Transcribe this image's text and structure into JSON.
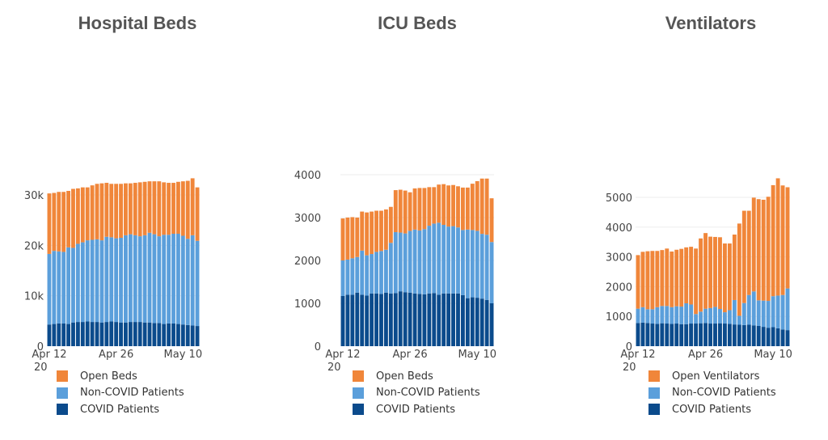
{
  "colors": {
    "open": "#F0863A",
    "noncovid": "#5B9FDB",
    "covid": "#0B4B8C"
  },
  "x_ticks": [
    "Apr 12",
    "Apr 26",
    "May 10"
  ],
  "x_year_partial": "20",
  "chart_data": [
    {
      "type": "bar",
      "stacked": true,
      "title": "Hospital Beds",
      "xlabel": "",
      "ylabel": "",
      "x_start": "2020-04-12",
      "ylim": [
        0,
        35000
      ],
      "yticks": [
        0,
        10000,
        20000,
        30000
      ],
      "ytick_labels": [
        "0",
        "10k",
        "20k",
        "30k"
      ],
      "legend": [
        "Open Beds",
        "Non-COVID Patients",
        "COVID Patients"
      ],
      "series": [
        {
          "name": "COVID Patients",
          "color": "#0B4B8C",
          "values": [
            4300,
            4400,
            4500,
            4500,
            4400,
            4700,
            4800,
            4800,
            4900,
            4800,
            4800,
            4700,
            4800,
            4900,
            4800,
            4700,
            4700,
            4800,
            4800,
            4800,
            4700,
            4700,
            4600,
            4600,
            4400,
            4500,
            4500,
            4400,
            4300,
            4200,
            4100,
            4000
          ]
        },
        {
          "name": "Non-COVID Patients",
          "color": "#5B9FDB",
          "values": [
            14000,
            14500,
            14300,
            14200,
            15200,
            14800,
            15500,
            15800,
            16100,
            16300,
            16400,
            16300,
            16900,
            16700,
            16600,
            16800,
            17300,
            17400,
            17200,
            17000,
            17300,
            17800,
            17600,
            17200,
            17700,
            17600,
            17800,
            17900,
            17600,
            17100,
            17900,
            16900
          ]
        },
        {
          "name": "Open Beds",
          "color": "#F0863A",
          "values": [
            12000,
            11500,
            11800,
            11900,
            11200,
            11700,
            11000,
            10900,
            10500,
            10800,
            11000,
            11300,
            10700,
            10600,
            10800,
            10700,
            10300,
            10100,
            10400,
            10700,
            10600,
            10200,
            10500,
            10900,
            10400,
            10300,
            10100,
            10300,
            10800,
            11500,
            11300,
            10600
          ]
        }
      ]
    },
    {
      "type": "bar",
      "stacked": true,
      "title": "ICU Beds",
      "xlabel": "",
      "ylabel": "",
      "x_start": "2020-04-12",
      "ylim": [
        0,
        4000
      ],
      "yticks": [
        0,
        1000,
        2000,
        3000,
        4000
      ],
      "ytick_labels": [
        "0",
        "1000",
        "2000",
        "3000",
        "4000"
      ],
      "legend": [
        "Open Beds",
        "Non-COVID Patients",
        "COVID Patients"
      ],
      "series": [
        {
          "name": "COVID Patients",
          "color": "#0B4B8C",
          "values": [
            1170,
            1200,
            1200,
            1250,
            1200,
            1180,
            1230,
            1230,
            1220,
            1250,
            1230,
            1240,
            1280,
            1260,
            1250,
            1230,
            1220,
            1210,
            1230,
            1240,
            1200,
            1230,
            1230,
            1230,
            1230,
            1190,
            1120,
            1140,
            1130,
            1110,
            1080,
            1000
          ]
        },
        {
          "name": "Non-COVID Patients",
          "color": "#5B9FDB",
          "values": [
            830,
            820,
            850,
            830,
            1030,
            940,
            920,
            970,
            1000,
            1000,
            1180,
            1420,
            1370,
            1370,
            1440,
            1490,
            1480,
            1520,
            1580,
            1620,
            1680,
            1600,
            1560,
            1570,
            1540,
            1520,
            1600,
            1570,
            1560,
            1510,
            1520,
            1430
          ]
        },
        {
          "name": "Open Beds",
          "color": "#F0863A",
          "values": [
            980,
            980,
            960,
            920,
            910,
            1000,
            990,
            960,
            940,
            940,
            840,
            980,
            1000,
            1000,
            900,
            960,
            990,
            960,
            900,
            850,
            890,
            950,
            960,
            960,
            960,
            990,
            980,
            1080,
            1160,
            1290,
            1310,
            1020
          ]
        }
      ]
    },
    {
      "type": "bar",
      "stacked": true,
      "title": "Ventilators",
      "xlabel": "",
      "ylabel": "",
      "x_start": "2020-04-12",
      "ylim": [
        0,
        5700
      ],
      "yticks": [
        0,
        1000,
        2000,
        3000,
        4000,
        5000
      ],
      "ytick_labels": [
        "0",
        "1000",
        "2000",
        "3000",
        "4000",
        "5000"
      ],
      "legend": [
        "Open Ventilators",
        "Non-COVID Patients",
        "COVID Patients"
      ],
      "series": [
        {
          "name": "COVID Patients",
          "color": "#0B4B8C",
          "values": [
            780,
            790,
            780,
            760,
            750,
            770,
            760,
            750,
            760,
            740,
            740,
            760,
            760,
            770,
            780,
            760,
            760,
            770,
            760,
            750,
            730,
            720,
            710,
            720,
            700,
            680,
            650,
            620,
            640,
            600,
            560,
            540
          ]
        },
        {
          "name": "Non-COVID Patients",
          "color": "#5B9FDB",
          "values": [
            480,
            520,
            460,
            480,
            560,
            580,
            590,
            560,
            580,
            590,
            700,
            640,
            320,
            390,
            480,
            520,
            560,
            480,
            380,
            460,
            820,
            300,
            740,
            1000,
            1140,
            860,
            880,
            900,
            1040,
            1100,
            1160,
            1400
          ]
        },
        {
          "name": "Open Ventilators",
          "color": "#F0863A",
          "values": [
            1800,
            1860,
            1950,
            1960,
            1890,
            1880,
            1930,
            1870,
            1900,
            1940,
            1880,
            1940,
            2200,
            2460,
            2540,
            2400,
            2350,
            2410,
            2310,
            2240,
            2200,
            3100,
            3100,
            2830,
            3150,
            3400,
            3390,
            3500,
            3730,
            3940,
            3680,
            3400
          ]
        }
      ]
    }
  ]
}
